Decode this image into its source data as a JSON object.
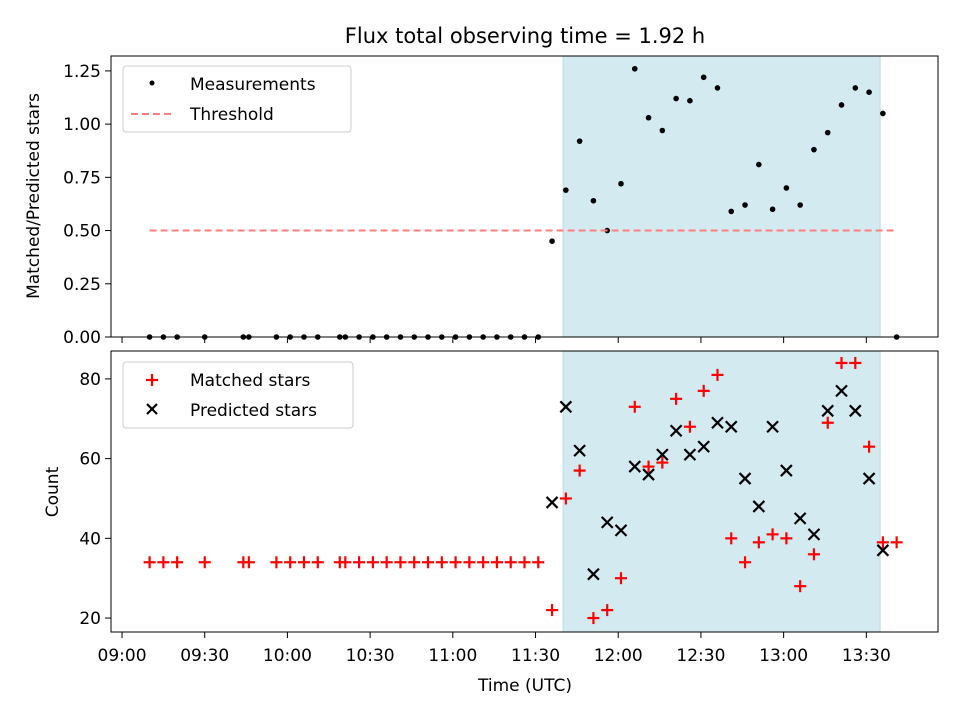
{
  "chart_data": [
    {
      "type": "scatter",
      "title": "Flux total observing time = 1.92 h",
      "xlabel": "",
      "ylabel": "Matched/Predicted stars",
      "ylim": [
        0,
        1.32
      ],
      "yticks": [
        "0.00",
        "0.25",
        "0.50",
        "0.75",
        "1.00",
        "1.25"
      ],
      "ytick_values": [
        0,
        0.25,
        0.5,
        0.75,
        1.0,
        1.25
      ],
      "xlim": [
        "08:56",
        "13:56"
      ],
      "shaded_region": [
        "11:40",
        "13:35"
      ],
      "shaded_color": "#d3eaf0",
      "legend": "top-left",
      "series": [
        {
          "name": "Measurements",
          "style": "dot",
          "color": "#000000",
          "x": [
            "09:10",
            "09:15",
            "09:20",
            "09:30",
            "09:44",
            "09:46",
            "09:56",
            "10:01",
            "10:06",
            "10:11",
            "10:19",
            "10:21",
            "10:26",
            "10:31",
            "10:36",
            "10:41",
            "10:46",
            "10:51",
            "10:56",
            "11:01",
            "11:06",
            "11:11",
            "11:16",
            "11:21",
            "11:26",
            "11:31",
            "11:36",
            "11:41",
            "11:46",
            "11:51",
            "11:56",
            "12:01",
            "12:06",
            "12:11",
            "12:16",
            "12:21",
            "12:26",
            "12:31",
            "12:36",
            "12:41",
            "12:46",
            "12:51",
            "12:56",
            "13:01",
            "13:06",
            "13:11",
            "13:16",
            "13:21",
            "13:26",
            "13:31",
            "13:36",
            "13:41"
          ],
          "y": [
            0,
            0,
            0,
            0,
            0,
            0,
            0,
            0,
            0,
            0,
            0,
            0,
            0,
            0,
            0,
            0,
            0,
            0,
            0,
            0,
            0,
            0,
            0,
            0,
            0,
            0,
            0.45,
            0.69,
            0.92,
            0.64,
            0.5,
            0.72,
            1.26,
            1.03,
            0.97,
            1.12,
            1.11,
            1.22,
            1.17,
            0.59,
            0.62,
            0.81,
            0.6,
            0.7,
            0.62,
            0.88,
            0.96,
            1.09,
            1.17,
            1.15,
            1.05,
            0
          ]
        },
        {
          "name": "Threshold",
          "style": "dashed-line",
          "color": "#ff7f7f",
          "x": [
            "09:10",
            "13:40"
          ],
          "y": [
            0.5,
            0.5
          ]
        }
      ]
    },
    {
      "type": "scatter",
      "title": "",
      "xlabel": "Time (UTC)",
      "ylabel": "Count",
      "ylim": [
        16.5,
        87
      ],
      "yticks": [
        "20",
        "40",
        "60",
        "80"
      ],
      "ytick_values": [
        20,
        40,
        60,
        80
      ],
      "xlim": [
        "08:56",
        "13:56"
      ],
      "xticks": [
        "09:00",
        "09:30",
        "10:00",
        "10:30",
        "11:00",
        "11:30",
        "12:00",
        "12:30",
        "13:00",
        "13:30"
      ],
      "shaded_region": [
        "11:40",
        "13:35"
      ],
      "shaded_color": "#d3eaf0",
      "legend": "top-left",
      "series": [
        {
          "name": "Matched stars",
          "style": "plus",
          "color": "#ff0000",
          "x": [
            "09:10",
            "09:15",
            "09:20",
            "09:30",
            "09:44",
            "09:46",
            "09:56",
            "10:01",
            "10:06",
            "10:11",
            "10:19",
            "10:21",
            "10:26",
            "10:31",
            "10:36",
            "10:41",
            "10:46",
            "10:51",
            "10:56",
            "11:01",
            "11:06",
            "11:11",
            "11:16",
            "11:21",
            "11:26",
            "11:31",
            "11:36",
            "11:41",
            "11:46",
            "11:51",
            "11:56",
            "12:01",
            "12:06",
            "12:11",
            "12:16",
            "12:21",
            "12:26",
            "12:31",
            "12:36",
            "12:41",
            "12:46",
            "12:51",
            "12:56",
            "13:01",
            "13:06",
            "13:11",
            "13:16",
            "13:21",
            "13:26",
            "13:31",
            "13:36",
            "13:41"
          ],
          "y": [
            34,
            34,
            34,
            34,
            34,
            34,
            34,
            34,
            34,
            34,
            34,
            34,
            34,
            34,
            34,
            34,
            34,
            34,
            34,
            34,
            34,
            34,
            34,
            34,
            34,
            34,
            22,
            50,
            57,
            20,
            22,
            30,
            73,
            58,
            59,
            75,
            68,
            77,
            81,
            40,
            34,
            39,
            41,
            40,
            28,
            36,
            69,
            84,
            84,
            63,
            39,
            39
          ]
        },
        {
          "name": "Predicted stars",
          "style": "x",
          "color": "#000000",
          "x": [
            "11:36",
            "11:41",
            "11:46",
            "11:51",
            "11:56",
            "12:01",
            "12:06",
            "12:11",
            "12:16",
            "12:21",
            "12:26",
            "12:31",
            "12:36",
            "12:41",
            "12:46",
            "12:51",
            "12:56",
            "13:01",
            "13:06",
            "13:11",
            "13:16",
            "13:21",
            "13:26",
            "13:31",
            "13:36"
          ],
          "y": [
            49,
            73,
            62,
            31,
            44,
            42,
            58,
            56,
            61,
            67,
            61,
            63,
            69,
            68,
            55,
            48,
            68,
            57,
            45,
            41,
            72,
            77,
            72,
            55,
            37
          ]
        }
      ]
    }
  ]
}
